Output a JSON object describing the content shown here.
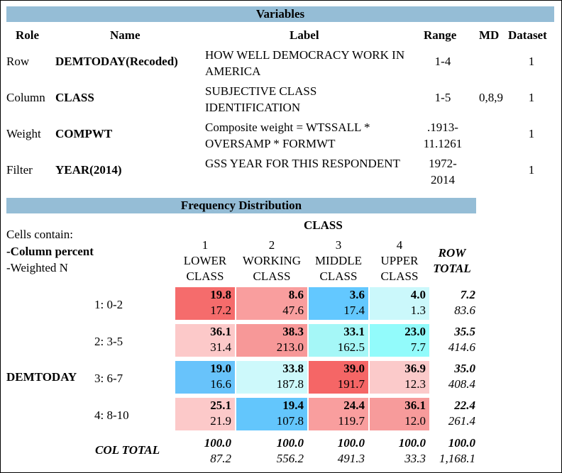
{
  "variables": {
    "title": "Variables",
    "headers": {
      "role": "Role",
      "name": "Name",
      "label": "Label",
      "range": "Range",
      "md": "MD",
      "dataset": "Dataset"
    },
    "rows": [
      {
        "role": "Row",
        "name": "DEMTODAY(Recoded)",
        "label": "HOW WELL DEMOCRACY WORK IN AMERICA",
        "range": "1-4",
        "md": "",
        "dataset": "1"
      },
      {
        "role": "Column",
        "name": "CLASS",
        "label": "SUBJECTIVE CLASS IDENTIFICATION",
        "range": "1-5",
        "md": "0,8,9",
        "dataset": "1"
      },
      {
        "role": "Weight",
        "name": "COMPWT",
        "label": "Composite weight = WTSSALL * OVERSAMP * FORMWT",
        "range": ".1913-11.1261",
        "md": "",
        "dataset": "1"
      },
      {
        "role": "Filter",
        "name": "YEAR(2014)",
        "label": "GSS YEAR FOR THIS RESPONDENT",
        "range": "1972-2014",
        "md": "",
        "dataset": "1"
      }
    ],
    "ranges_split": [
      [
        "1-4",
        ""
      ],
      [
        "1-5",
        ""
      ],
      [
        ".1913-",
        "11.1261"
      ],
      [
        "1972-",
        "2014"
      ]
    ]
  },
  "frequency": {
    "title": "Frequency Distribution",
    "cells_contain": "Cells contain:",
    "cells_line1": "-Column percent",
    "cells_line2": "-Weighted N",
    "column_variable": "CLASS",
    "row_variable": "DEMTODAY",
    "columns": [
      {
        "code": "1",
        "line1": "LOWER",
        "line2": "CLASS"
      },
      {
        "code": "2",
        "line1": "WORKING",
        "line2": "CLASS"
      },
      {
        "code": "3",
        "line1": "MIDDLE",
        "line2": "CLASS"
      },
      {
        "code": "4",
        "line1": "UPPER",
        "line2": "CLASS"
      }
    ],
    "row_total_label_1": "ROW",
    "row_total_label_2": "TOTAL",
    "col_total_label": "COL TOTAL",
    "rows": [
      {
        "label": "1: 0-2",
        "cells": [
          {
            "pct": "19.8",
            "n": "17.2",
            "color": "#f56c6c"
          },
          {
            "pct": "8.6",
            "n": "47.6",
            "color": "#f99e9e"
          },
          {
            "pct": "3.6",
            "n": "17.4",
            "color": "#63c8ff"
          },
          {
            "pct": "4.0",
            "n": "1.3",
            "color": "#cbf8fb"
          }
        ],
        "total": {
          "pct": "7.2",
          "n": "83.6"
        }
      },
      {
        "label": "2: 3-5",
        "cells": [
          {
            "pct": "36.1",
            "n": "31.4",
            "color": "#fcc9c9"
          },
          {
            "pct": "38.3",
            "n": "213.0",
            "color": "#f79898"
          },
          {
            "pct": "33.1",
            "n": "162.5",
            "color": "#a5f7f7"
          },
          {
            "pct": "23.0",
            "n": "7.7",
            "color": "#92fbfb"
          }
        ],
        "total": {
          "pct": "35.5",
          "n": "414.6"
        }
      },
      {
        "label": "3: 6-7",
        "cells": [
          {
            "pct": "19.0",
            "n": "16.6",
            "color": "#68c3fb"
          },
          {
            "pct": "33.8",
            "n": "187.8",
            "color": "#cdf9fb"
          },
          {
            "pct": "39.0",
            "n": "191.7",
            "color": "#f56666"
          },
          {
            "pct": "36.9",
            "n": "12.3",
            "color": "#fbcaca"
          }
        ],
        "total": {
          "pct": "35.0",
          "n": "408.4"
        }
      },
      {
        "label": "4: 8-10",
        "cells": [
          {
            "pct": "25.1",
            "n": "21.9",
            "color": "#fcc9c9"
          },
          {
            "pct": "19.4",
            "n": "107.8",
            "color": "#63c6fc"
          },
          {
            "pct": "24.4",
            "n": "119.7",
            "color": "#f99e9e"
          },
          {
            "pct": "36.1",
            "n": "12.0",
            "color": "#f79b9b"
          }
        ],
        "total": {
          "pct": "22.4",
          "n": "261.4"
        }
      }
    ],
    "col_totals": [
      {
        "pct": "100.0",
        "n": "87.2"
      },
      {
        "pct": "100.0",
        "n": "556.2"
      },
      {
        "pct": "100.0",
        "n": "491.3"
      },
      {
        "pct": "100.0",
        "n": "33.3"
      }
    ],
    "grand_total": {
      "pct": "100.0",
      "n": "1,168.1"
    }
  }
}
